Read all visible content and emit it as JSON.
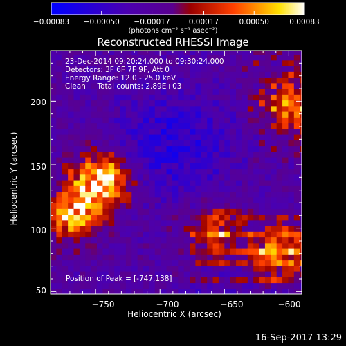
{
  "chart_data": {
    "type": "heatmap",
    "title": "Reconstructed RHESSI Image",
    "xlabel": "Heliocentric X (arcsec)",
    "ylabel": "Heliocentric Y (arcsec)",
    "xlim": [
      -785,
      -590
    ],
    "ylim": [
      48,
      240
    ],
    "x_ticks": [
      -750,
      -700,
      -650,
      -600
    ],
    "x_tick_labels": [
      "−750",
      "−700",
      "−650",
      "−600"
    ],
    "y_ticks": [
      50,
      100,
      150,
      200
    ],
    "y_tick_labels": [
      "50",
      "100",
      "150",
      "200"
    ],
    "colorbar": {
      "range": [
        -0.00083,
        0.00083
      ],
      "ticks": [
        -0.00083,
        -0.0005,
        -0.00017,
        0.00017,
        0.0005,
        0.00083
      ],
      "tick_labels": [
        "−0.00083",
        "−0.00050",
        "−0.00017",
        "0.00017",
        "0.00050",
        "0.00083"
      ],
      "units": "(photons cm⁻² s⁻¹ asec⁻²)",
      "colors": [
        "#0000ff",
        "#4b00b0",
        "#5a008f",
        "#9a0000",
        "#ff4000",
        "#ffe000",
        "#ffffff"
      ]
    },
    "annotations": [
      "23-Dec-2014 09:20:24.000 to 09:30:24.000",
      "Detectors: 3F 6F 7F 9F, Att 0",
      "Energy Range: 12.0 - 25.0 keV",
      "Clean     Total counts: 2.89E+03"
    ],
    "peak_label": "Position of Peak = [-747,138]",
    "peak_position": [
      -747,
      138
    ],
    "bright_regions": [
      {
        "x": -748,
        "y": 135,
        "level": 1.0
      },
      {
        "x": -770,
        "y": 110,
        "level": 0.75
      },
      {
        "x": -610,
        "y": 80,
        "level": 0.8
      },
      {
        "x": -600,
        "y": 195,
        "level": 0.65
      },
      {
        "x": -660,
        "y": 95,
        "level": 0.55
      }
    ],
    "grid": false
  },
  "footer": {
    "timestamp": "16-Sep-2017 13:29"
  }
}
